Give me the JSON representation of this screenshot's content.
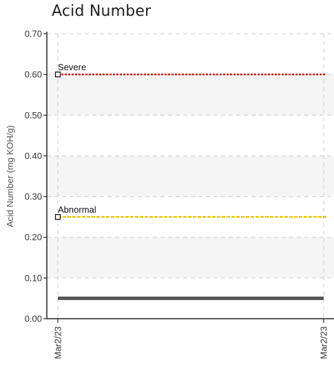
{
  "chart_data": {
    "type": "line",
    "title": "Acid Number",
    "ylabel": "Acid Number (mg KOH/g)",
    "xlabel": "",
    "ylim": [
      0,
      0.7
    ],
    "yticks": [
      "0.00",
      "0.10",
      "0.20",
      "0.30",
      "0.40",
      "0.50",
      "0.60",
      "0.70"
    ],
    "x": [
      "Mar2/23",
      "Mar2/23"
    ],
    "series": [
      {
        "name": "",
        "values": [
          0.05,
          0.05
        ],
        "color": "#555555",
        "style": "solid"
      }
    ],
    "thresholds": [
      {
        "label": "Severe",
        "value": 0.6,
        "color": "#e8141a",
        "style": "dotted"
      },
      {
        "label": "Abnormal",
        "value": 0.25,
        "color": "#f0c400",
        "style": "dashed"
      }
    ],
    "grid": true,
    "legend": "none"
  }
}
